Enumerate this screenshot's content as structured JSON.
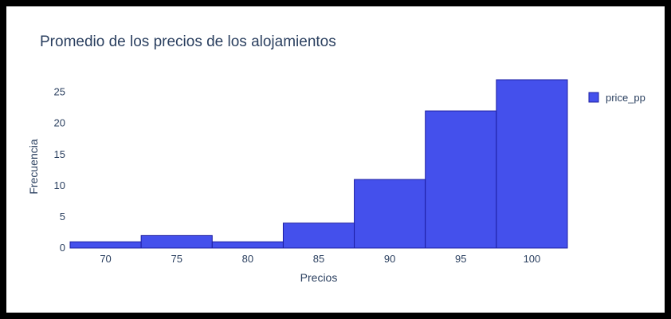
{
  "chart_data": {
    "type": "bar",
    "title": "Promedio de los precios de los alojamientos",
    "xlabel": "Precios",
    "ylabel": "Frecuencia",
    "series": [
      {
        "name": "price_pp",
        "bins": [
          {
            "x0": 67.5,
            "x1": 72.5,
            "count": 1
          },
          {
            "x0": 72.5,
            "x1": 77.5,
            "count": 2
          },
          {
            "x0": 77.5,
            "x1": 82.5,
            "count": 1
          },
          {
            "x0": 82.5,
            "x1": 87.5,
            "count": 4
          },
          {
            "x0": 87.5,
            "x1": 92.5,
            "count": 11
          },
          {
            "x0": 92.5,
            "x1": 97.5,
            "count": 22
          },
          {
            "x0": 97.5,
            "x1": 102.5,
            "count": 27
          }
        ]
      }
    ],
    "x_ticks": [
      70,
      75,
      80,
      85,
      90,
      95,
      100
    ],
    "y_ticks": [
      0,
      5,
      10,
      15,
      20,
      25
    ],
    "xlim": [
      67.5,
      102.5
    ],
    "ylim": [
      0,
      27
    ],
    "grid": false,
    "legend_position": "top-right",
    "colors": {
      "bar_fill": "#4450ec",
      "bar_stroke": "#1d1fa3",
      "text": "#2a3f5f"
    }
  }
}
